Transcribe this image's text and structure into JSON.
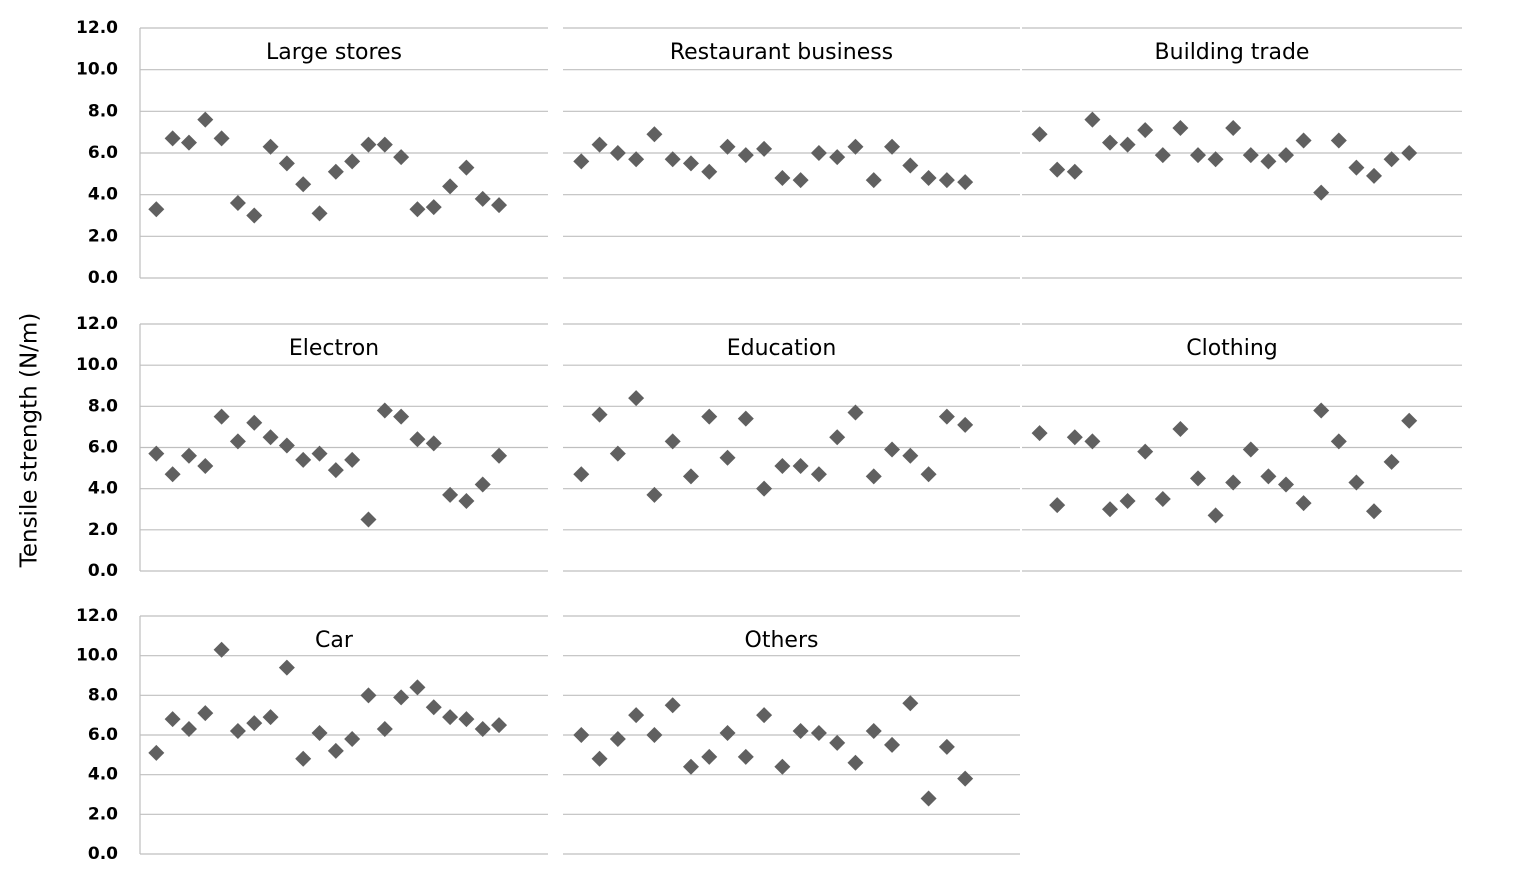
{
  "y_label": "Tensile strength (N/m)",
  "chart_data": [
    {
      "type": "scatter",
      "title": "Large stores",
      "color": "#606060",
      "grid": true,
      "ylim": [
        0,
        12
      ],
      "yticks": [
        {
          "value": 0,
          "label": "0.0"
        },
        {
          "value": 2,
          "label": "2.0"
        },
        {
          "value": 4,
          "label": "4.0"
        },
        {
          "value": 6,
          "label": "6.0"
        },
        {
          "value": 8,
          "label": "8.0"
        },
        {
          "value": 10,
          "label": "10.0"
        },
        {
          "value": 12,
          "label": "12.0"
        }
      ],
      "values": [
        3.3,
        6.7,
        6.5,
        7.6,
        6.7,
        3.6,
        3.0,
        6.3,
        5.5,
        4.5,
        3.1,
        5.1,
        5.6,
        6.4,
        6.4,
        5.8,
        3.3,
        3.4,
        4.4,
        5.3,
        3.8,
        3.5
      ]
    },
    {
      "type": "scatter",
      "title": "Restaurant business",
      "color": "#606060",
      "grid": true,
      "ylim": [
        0,
        12
      ],
      "yticks": [
        0,
        2,
        4,
        6,
        8,
        10,
        12
      ],
      "values": [
        5.6,
        6.4,
        6.0,
        5.7,
        6.9,
        5.7,
        5.5,
        5.1,
        6.3,
        5.9,
        6.2,
        4.8,
        4.7,
        6.0,
        5.8,
        6.3,
        4.7,
        6.3,
        5.4,
        4.8,
        4.7,
        4.6
      ]
    },
    {
      "type": "scatter",
      "title": "Building trade",
      "color": "#606060",
      "grid": true,
      "ylim": [
        0,
        12
      ],
      "yticks": [
        0,
        2,
        4,
        6,
        8,
        10,
        12
      ],
      "values": [
        6.9,
        5.2,
        5.1,
        7.6,
        6.5,
        6.4,
        7.1,
        5.9,
        7.2,
        5.9,
        5.7,
        7.2,
        5.9,
        5.6,
        5.9,
        6.6,
        4.1,
        6.6,
        5.3,
        4.9,
        5.7,
        6.0
      ]
    },
    {
      "type": "scatter",
      "title": "Electron",
      "color": "#606060",
      "grid": true,
      "ylim": [
        0,
        12
      ],
      "yticks": [
        {
          "value": 0,
          "label": "0.0"
        },
        {
          "value": 2,
          "label": "2.0"
        },
        {
          "value": 4,
          "label": "4.0"
        },
        {
          "value": 6,
          "label": "6.0"
        },
        {
          "value": 8,
          "label": "8.0"
        },
        {
          "value": 10,
          "label": "10.0"
        },
        {
          "value": 12,
          "label": "12.0"
        }
      ],
      "values": [
        5.7,
        4.7,
        5.6,
        5.1,
        7.5,
        6.3,
        7.2,
        6.5,
        6.1,
        5.4,
        5.7,
        4.9,
        5.4,
        2.5,
        7.8,
        7.5,
        6.4,
        6.2,
        3.7,
        3.4,
        4.2,
        5.6
      ]
    },
    {
      "type": "scatter",
      "title": "Education",
      "color": "#606060",
      "grid": true,
      "ylim": [
        0,
        12
      ],
      "yticks": [
        0,
        2,
        4,
        6,
        8,
        10,
        12
      ],
      "values": [
        4.7,
        7.6,
        5.7,
        8.4,
        3.7,
        6.3,
        4.6,
        7.5,
        5.5,
        7.4,
        4.0,
        5.1,
        5.1,
        4.7,
        6.5,
        7.7,
        4.6,
        5.9,
        5.6,
        4.7,
        7.5,
        7.1
      ]
    },
    {
      "type": "scatter",
      "title": "Clothing",
      "color": "#606060",
      "grid": true,
      "ylim": [
        0,
        12
      ],
      "yticks": [
        0,
        2,
        4,
        6,
        8,
        10,
        12
      ],
      "values": [
        6.7,
        3.2,
        6.5,
        6.3,
        3.0,
        3.4,
        5.8,
        3.5,
        6.9,
        4.5,
        2.7,
        4.3,
        5.9,
        4.6,
        4.2,
        3.3,
        7.8,
        6.3,
        4.3,
        2.9,
        5.3,
        7.3
      ]
    },
    {
      "type": "scatter",
      "title": "Car",
      "color": "#606060",
      "grid": true,
      "ylim": [
        0,
        12
      ],
      "yticks": [
        {
          "value": 0,
          "label": "0.0"
        },
        {
          "value": 2,
          "label": "2.0"
        },
        {
          "value": 4,
          "label": "4.0"
        },
        {
          "value": 6,
          "label": "6.0"
        },
        {
          "value": 8,
          "label": "8.0"
        },
        {
          "value": 10,
          "label": "10.0"
        },
        {
          "value": 12,
          "label": "12.0"
        }
      ],
      "values": [
        5.1,
        6.8,
        6.3,
        7.1,
        10.3,
        6.2,
        6.6,
        6.9,
        9.4,
        4.8,
        6.1,
        5.2,
        5.8,
        8.0,
        6.3,
        7.9,
        8.4,
        7.4,
        6.9,
        6.8,
        6.3,
        6.5
      ]
    },
    {
      "type": "scatter",
      "title": "Others",
      "color": "#606060",
      "grid": true,
      "ylim": [
        0,
        12
      ],
      "yticks": [
        0,
        2,
        4,
        6,
        8,
        10,
        12
      ],
      "values": [
        6.0,
        4.8,
        5.8,
        7.0,
        6.0,
        7.5,
        4.4,
        4.9,
        6.1,
        4.9,
        7.0,
        4.4,
        6.2,
        6.1,
        5.6,
        4.6,
        6.2,
        5.5,
        7.6,
        2.8,
        5.4,
        3.8
      ]
    }
  ]
}
